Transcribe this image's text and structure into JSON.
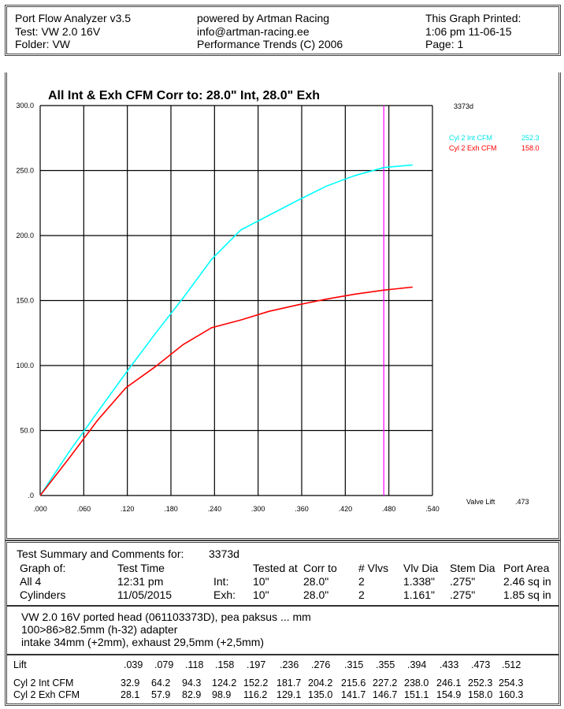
{
  "header": {
    "left": [
      "Port Flow Analyzer v3.5",
      "Test: VW 2.0 16V",
      "Folder: VW"
    ],
    "center": [
      "powered by Artman Racing",
      "info@artman-racing.ee",
      "Performance Trends (C) 2006"
    ],
    "right": [
      "This Graph Printed:",
      "1:06 pm 11-06-15",
      "Page: 1"
    ]
  },
  "chart_data": {
    "type": "line",
    "title": "All Int & Exh CFM   Corr to: 28.0\" Int, 28.0\" Exh",
    "test_id": "3373d",
    "xlim": [
      0,
      0.54
    ],
    "ylim": [
      0,
      300
    ],
    "x_ticks": [
      ".000",
      ".060",
      ".120",
      ".180",
      ".240",
      ".300",
      ".360",
      ".420",
      ".480",
      ".540"
    ],
    "y_ticks": [
      ".0",
      "50.0",
      "100.0",
      "150.0",
      "200.0",
      "250.0",
      "300.0"
    ],
    "grid": true,
    "x": [
      0.039,
      0.079,
      0.118,
      0.158,
      0.197,
      0.236,
      0.276,
      0.315,
      0.355,
      0.394,
      0.433,
      0.473,
      0.512
    ],
    "series": [
      {
        "name": "Cyl 2 Int CFM",
        "color": "#00ffff",
        "values": [
          32.9,
          64.2,
          94.3,
          124.2,
          152.2,
          181.7,
          204.2,
          215.6,
          227.2,
          238.0,
          246.1,
          252.3,
          254.3
        ],
        "readout": "252.3"
      },
      {
        "name": "Cyl 2 Exh CFM",
        "color": "#ff0000",
        "values": [
          28.1,
          57.9,
          82.9,
          98.9,
          116.2,
          129.1,
          135.0,
          141.7,
          146.7,
          151.1,
          154.9,
          158.0,
          160.3
        ],
        "readout": "158.0"
      }
    ],
    "cursor": {
      "label": "Valve Lift",
      "value": ".473",
      "x": 0.473,
      "color": "#ff00ff"
    },
    "legend": "right"
  },
  "summary": {
    "title": "Test Summary and Comments for:",
    "test_id": "3373d",
    "headers": [
      "Graph of:",
      "Test Time",
      "",
      "Tested at",
      "Corr to",
      "# Vlvs",
      "Vlv Dia",
      "Stem Dia",
      "Port Area"
    ],
    "rows": [
      [
        "All 4",
        "12:31 pm",
        "Int:",
        "10\"",
        "28.0\"",
        "2",
        "1.338\"",
        ".275\"",
        "2.46 sq in"
      ],
      [
        "Cylinders",
        "11/05/2015",
        "Exh:",
        "10\"",
        "28.0\"",
        "2",
        "1.161\"",
        ".275\"",
        "1.85 sq in"
      ]
    ],
    "comments": [
      "VW 2.0 16V ported head (061103373D), pea paksus ... mm",
      "100>86>82.5mm (h-32) adapter",
      "intake 34mm (+2mm), exhaust 29,5mm (+2,5mm)"
    ]
  },
  "table": {
    "lift_label": "Lift",
    "lift": [
      ".039",
      ".079",
      ".118",
      ".158",
      ".197",
      ".236",
      ".276",
      ".315",
      ".355",
      ".394",
      ".433",
      ".473",
      ".512"
    ],
    "rows": [
      {
        "label": "Cyl 2 Int CFM",
        "values": [
          "32.9",
          "64.2",
          "94.3",
          "124.2",
          "152.2",
          "181.7",
          "204.2",
          "215.6",
          "227.2",
          "238.0",
          "246.1",
          "252.3",
          "254.3"
        ]
      },
      {
        "label": "Cyl 2 Exh CFM",
        "values": [
          "28.1",
          "57.9",
          "82.9",
          "98.9",
          "116.2",
          "129.1",
          "135.0",
          "141.7",
          "146.7",
          "151.1",
          "154.9",
          "158.0",
          "160.3"
        ]
      }
    ]
  }
}
